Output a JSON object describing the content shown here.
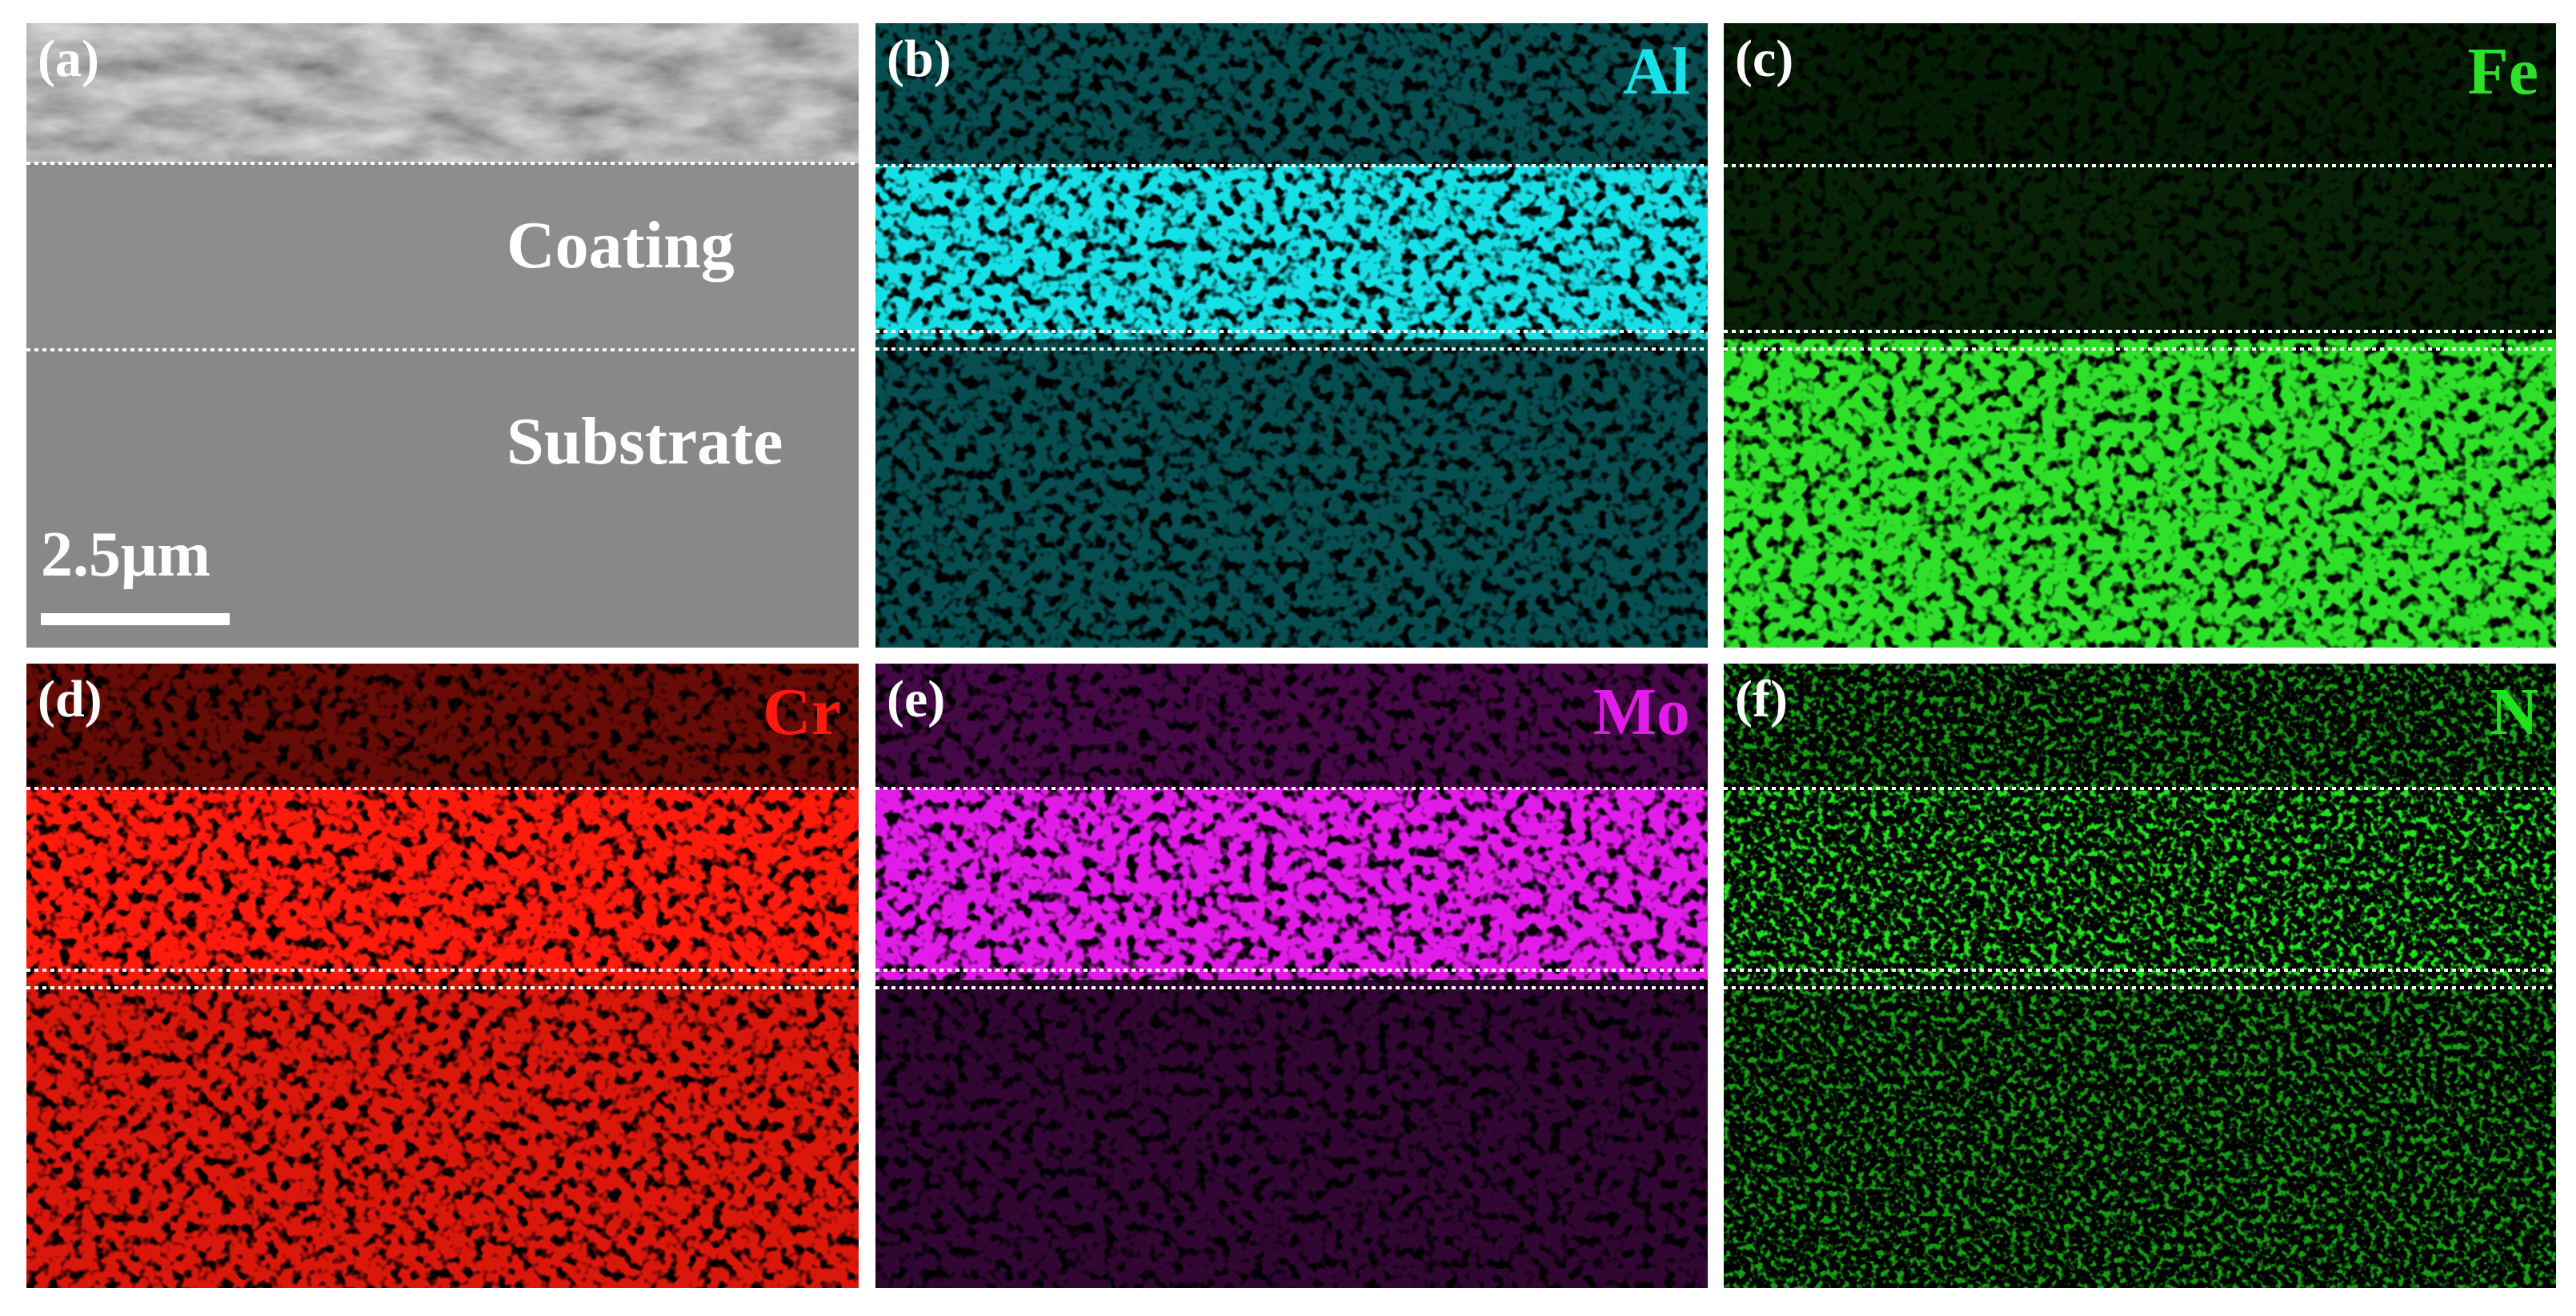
{
  "panels": [
    {
      "label": "(a)",
      "annotations": [
        "Coating",
        "Substrate"
      ],
      "scale_bar": "2.5μm"
    },
    {
      "label": "(b)",
      "element": "Al",
      "color": "#19e0e6"
    },
    {
      "label": "(c)",
      "element": "Fe",
      "color": "#2de02a"
    },
    {
      "label": "(d)",
      "element": "Cr",
      "color": "#ff1a10"
    },
    {
      "label": "(e)",
      "element": "Mo",
      "color": "#e21ce8"
    },
    {
      "label": "(f)",
      "element": "N",
      "color": "#22e01e"
    }
  ]
}
